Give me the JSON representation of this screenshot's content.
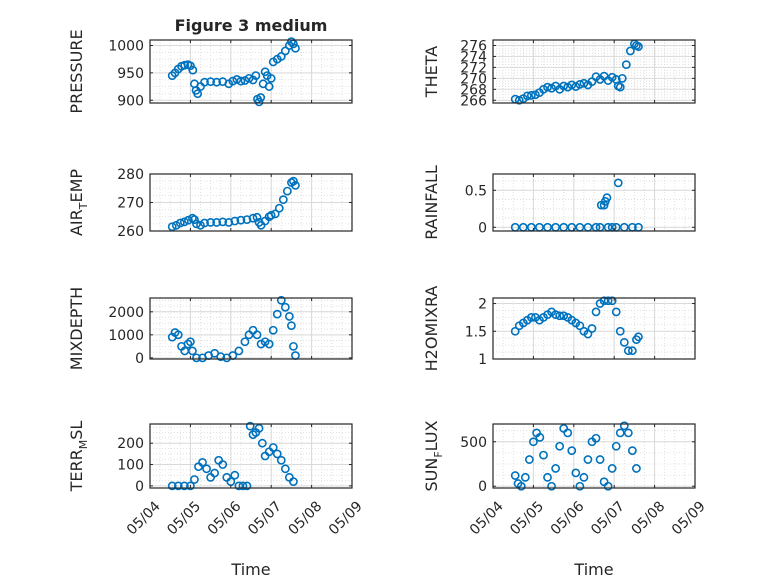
{
  "figure": {
    "title": "Figure 3 medium"
  },
  "colors": {
    "marker": "#0072BD",
    "grid": "#d9d9d9",
    "axis": "#262626"
  },
  "time_axis": {
    "label": "Time",
    "ticks": [
      "05/04",
      "05/05",
      "05/06",
      "05/07",
      "05/08",
      "05/09"
    ]
  },
  "chart_data": [
    {
      "type": "scatter",
      "ylabel": "PRESSURE",
      "ylim": [
        895,
        1010
      ],
      "yticks": [
        900,
        950,
        1000
      ],
      "x_range": [
        0,
        5
      ],
      "points": [
        [
          0.55,
          945
        ],
        [
          0.62,
          950
        ],
        [
          0.7,
          957
        ],
        [
          0.78,
          962
        ],
        [
          0.86,
          964
        ],
        [
          0.94,
          965
        ],
        [
          1.0,
          963
        ],
        [
          1.06,
          955
        ],
        [
          1.1,
          930
        ],
        [
          1.14,
          918
        ],
        [
          1.18,
          912
        ],
        [
          1.25,
          925
        ],
        [
          1.35,
          933
        ],
        [
          1.5,
          934
        ],
        [
          1.65,
          933
        ],
        [
          1.8,
          934
        ],
        [
          1.95,
          930
        ],
        [
          2.05,
          935
        ],
        [
          2.15,
          938
        ],
        [
          2.25,
          935
        ],
        [
          2.35,
          936
        ],
        [
          2.45,
          940
        ],
        [
          2.55,
          937
        ],
        [
          2.62,
          945
        ],
        [
          2.66,
          902
        ],
        [
          2.7,
          897
        ],
        [
          2.74,
          905
        ],
        [
          2.8,
          930
        ],
        [
          2.85,
          952
        ],
        [
          2.9,
          945
        ],
        [
          2.95,
          925
        ],
        [
          3.0,
          940
        ],
        [
          3.05,
          970
        ],
        [
          3.15,
          975
        ],
        [
          3.25,
          980
        ],
        [
          3.35,
          990
        ],
        [
          3.45,
          1000
        ],
        [
          3.5,
          1007
        ],
        [
          3.55,
          1003
        ],
        [
          3.6,
          995
        ]
      ]
    },
    {
      "type": "scatter",
      "ylabel": "THETA",
      "ylim": [
        265.5,
        277
      ],
      "yticks": [
        266,
        268,
        270,
        272,
        274,
        276
      ],
      "x_range": [
        0,
        5
      ],
      "points": [
        [
          0.55,
          266.2
        ],
        [
          0.65,
          266.0
        ],
        [
          0.75,
          266.3
        ],
        [
          0.85,
          266.8
        ],
        [
          0.95,
          266.9
        ],
        [
          1.05,
          267.0
        ],
        [
          1.15,
          267.4
        ],
        [
          1.25,
          268.0
        ],
        [
          1.35,
          268.4
        ],
        [
          1.45,
          268.2
        ],
        [
          1.55,
          268.6
        ],
        [
          1.65,
          268.0
        ],
        [
          1.75,
          268.6
        ],
        [
          1.85,
          268.4
        ],
        [
          1.95,
          268.8
        ],
        [
          2.05,
          268.5
        ],
        [
          2.15,
          268.9
        ],
        [
          2.25,
          269.1
        ],
        [
          2.35,
          268.8
        ],
        [
          2.45,
          269.4
        ],
        [
          2.55,
          270.3
        ],
        [
          2.65,
          269.8
        ],
        [
          2.75,
          270.4
        ],
        [
          2.85,
          269.6
        ],
        [
          2.95,
          270.2
        ],
        [
          3.05,
          269.8
        ],
        [
          3.1,
          268.6
        ],
        [
          3.15,
          268.4
        ],
        [
          3.2,
          270.0
        ],
        [
          3.3,
          272.5
        ],
        [
          3.4,
          275.0
        ],
        [
          3.5,
          276.3
        ],
        [
          3.55,
          276.0
        ],
        [
          3.6,
          275.8
        ]
      ]
    },
    {
      "type": "scatter",
      "ylabel": "AIR_TEMP",
      "ylim": [
        260,
        280
      ],
      "yticks": [
        260,
        270,
        280
      ],
      "x_range": [
        0,
        5
      ],
      "points": [
        [
          0.55,
          261.5
        ],
        [
          0.65,
          262.0
        ],
        [
          0.75,
          262.8
        ],
        [
          0.85,
          263.2
        ],
        [
          0.95,
          263.8
        ],
        [
          1.05,
          264.5
        ],
        [
          1.1,
          264.0
        ],
        [
          1.15,
          262.5
        ],
        [
          1.25,
          262.0
        ],
        [
          1.35,
          262.8
        ],
        [
          1.5,
          263.0
        ],
        [
          1.65,
          263.0
        ],
        [
          1.8,
          263.2
        ],
        [
          1.95,
          263.0
        ],
        [
          2.1,
          263.5
        ],
        [
          2.25,
          263.8
        ],
        [
          2.4,
          264.0
        ],
        [
          2.55,
          264.5
        ],
        [
          2.65,
          264.8
        ],
        [
          2.7,
          263.0
        ],
        [
          2.75,
          262.0
        ],
        [
          2.85,
          263.5
        ],
        [
          2.95,
          265.0
        ],
        [
          3.0,
          265.5
        ],
        [
          3.1,
          266.0
        ],
        [
          3.2,
          268.0
        ],
        [
          3.3,
          271.0
        ],
        [
          3.4,
          274.0
        ],
        [
          3.5,
          277.0
        ],
        [
          3.55,
          277.5
        ],
        [
          3.6,
          276.0
        ]
      ]
    },
    {
      "type": "scatter",
      "ylabel": "RAINFALL",
      "ylim": [
        -0.05,
        0.72
      ],
      "yticks": [
        0,
        0.5
      ],
      "x_range": [
        0,
        5
      ],
      "points": [
        [
          0.55,
          0
        ],
        [
          0.75,
          0
        ],
        [
          0.95,
          0
        ],
        [
          1.15,
          0
        ],
        [
          1.35,
          0
        ],
        [
          1.55,
          0
        ],
        [
          1.75,
          0
        ],
        [
          1.95,
          0
        ],
        [
          2.15,
          0
        ],
        [
          2.35,
          0
        ],
        [
          2.55,
          0
        ],
        [
          2.65,
          0
        ],
        [
          2.68,
          0.3
        ],
        [
          2.75,
          0.3
        ],
        [
          2.78,
          0.35
        ],
        [
          2.82,
          0.4
        ],
        [
          2.85,
          0.0
        ],
        [
          2.95,
          0.0
        ],
        [
          3.05,
          0
        ],
        [
          3.1,
          0.6
        ],
        [
          3.25,
          0
        ],
        [
          3.45,
          0
        ],
        [
          3.6,
          0
        ]
      ]
    },
    {
      "type": "scatter",
      "ylabel": "MIXDEPTH",
      "ylim": [
        -50,
        2600
      ],
      "yticks": [
        0,
        1000,
        2000
      ],
      "x_range": [
        0,
        5
      ],
      "points": [
        [
          0.55,
          900
        ],
        [
          0.62,
          1100
        ],
        [
          0.7,
          1000
        ],
        [
          0.78,
          500
        ],
        [
          0.86,
          300
        ],
        [
          0.94,
          600
        ],
        [
          1.0,
          700
        ],
        [
          1.05,
          300
        ],
        [
          1.15,
          0
        ],
        [
          1.3,
          0
        ],
        [
          1.45,
          100
        ],
        [
          1.6,
          200
        ],
        [
          1.75,
          50
        ],
        [
          1.9,
          0
        ],
        [
          2.05,
          100
        ],
        [
          2.2,
          300
        ],
        [
          2.35,
          700
        ],
        [
          2.45,
          1000
        ],
        [
          2.55,
          1200
        ],
        [
          2.65,
          1000
        ],
        [
          2.75,
          600
        ],
        [
          2.85,
          700
        ],
        [
          2.95,
          600
        ],
        [
          3.05,
          1200
        ],
        [
          3.15,
          1900
        ],
        [
          3.25,
          2500
        ],
        [
          3.35,
          2200
        ],
        [
          3.45,
          1800
        ],
        [
          3.5,
          1400
        ],
        [
          3.55,
          500
        ],
        [
          3.6,
          100
        ]
      ]
    },
    {
      "type": "scatter",
      "ylabel": "H2OMIXRA",
      "ylim": [
        1.0,
        2.1
      ],
      "yticks": [
        1,
        1.5,
        2
      ],
      "x_range": [
        0,
        5
      ],
      "points": [
        [
          0.55,
          1.5
        ],
        [
          0.65,
          1.6
        ],
        [
          0.75,
          1.65
        ],
        [
          0.85,
          1.7
        ],
        [
          0.95,
          1.75
        ],
        [
          1.05,
          1.75
        ],
        [
          1.15,
          1.7
        ],
        [
          1.25,
          1.75
        ],
        [
          1.35,
          1.8
        ],
        [
          1.45,
          1.85
        ],
        [
          1.55,
          1.8
        ],
        [
          1.65,
          1.78
        ],
        [
          1.75,
          1.78
        ],
        [
          1.85,
          1.75
        ],
        [
          1.95,
          1.7
        ],
        [
          2.05,
          1.65
        ],
        [
          2.15,
          1.6
        ],
        [
          2.25,
          1.5
        ],
        [
          2.35,
          1.45
        ],
        [
          2.45,
          1.55
        ],
        [
          2.55,
          1.85
        ],
        [
          2.65,
          2.0
        ],
        [
          2.75,
          2.05
        ],
        [
          2.85,
          2.05
        ],
        [
          2.95,
          2.05
        ],
        [
          3.05,
          1.85
        ],
        [
          3.15,
          1.5
        ],
        [
          3.25,
          1.3
        ],
        [
          3.35,
          1.15
        ],
        [
          3.45,
          1.15
        ],
        [
          3.55,
          1.35
        ],
        [
          3.6,
          1.4
        ]
      ]
    },
    {
      "type": "scatter",
      "ylabel": "TERR_MSL",
      "ylim": [
        -10,
        290
      ],
      "yticks": [
        0,
        100,
        200
      ],
      "x_range": [
        0,
        5
      ],
      "points": [
        [
          0.55,
          0
        ],
        [
          0.7,
          0
        ],
        [
          0.85,
          0
        ],
        [
          1.0,
          0
        ],
        [
          1.1,
          30
        ],
        [
          1.2,
          90
        ],
        [
          1.3,
          110
        ],
        [
          1.4,
          80
        ],
        [
          1.5,
          40
        ],
        [
          1.6,
          60
        ],
        [
          1.7,
          120
        ],
        [
          1.8,
          100
        ],
        [
          1.9,
          40
        ],
        [
          2.0,
          20
        ],
        [
          2.1,
          50
        ],
        [
          2.2,
          0
        ],
        [
          2.3,
          0
        ],
        [
          2.4,
          0
        ],
        [
          2.48,
          280
        ],
        [
          2.55,
          240
        ],
        [
          2.62,
          250
        ],
        [
          2.7,
          270
        ],
        [
          2.78,
          200
        ],
        [
          2.85,
          140
        ],
        [
          2.95,
          160
        ],
        [
          3.05,
          180
        ],
        [
          3.15,
          150
        ],
        [
          3.25,
          120
        ],
        [
          3.35,
          80
        ],
        [
          3.45,
          40
        ],
        [
          3.55,
          20
        ]
      ]
    },
    {
      "type": "scatter",
      "ylabel": "SUN_FLUX",
      "ylim": [
        -20,
        700
      ],
      "yticks": [
        0,
        500
      ],
      "x_range": [
        0,
        5
      ],
      "points": [
        [
          0.55,
          120
        ],
        [
          0.62,
          30
        ],
        [
          0.7,
          0
        ],
        [
          0.8,
          100
        ],
        [
          0.9,
          300
        ],
        [
          1.0,
          500
        ],
        [
          1.08,
          600
        ],
        [
          1.16,
          550
        ],
        [
          1.25,
          350
        ],
        [
          1.35,
          100
        ],
        [
          1.45,
          0
        ],
        [
          1.55,
          200
        ],
        [
          1.65,
          450
        ],
        [
          1.75,
          650
        ],
        [
          1.85,
          600
        ],
        [
          1.95,
          400
        ],
        [
          2.05,
          150
        ],
        [
          2.15,
          0
        ],
        [
          2.25,
          100
        ],
        [
          2.35,
          300
        ],
        [
          2.45,
          500
        ],
        [
          2.55,
          540
        ],
        [
          2.65,
          300
        ],
        [
          2.75,
          50
        ],
        [
          2.85,
          0
        ],
        [
          2.95,
          200
        ],
        [
          3.05,
          450
        ],
        [
          3.15,
          600
        ],
        [
          3.25,
          680
        ],
        [
          3.35,
          600
        ],
        [
          3.45,
          400
        ],
        [
          3.55,
          200
        ]
      ]
    }
  ]
}
